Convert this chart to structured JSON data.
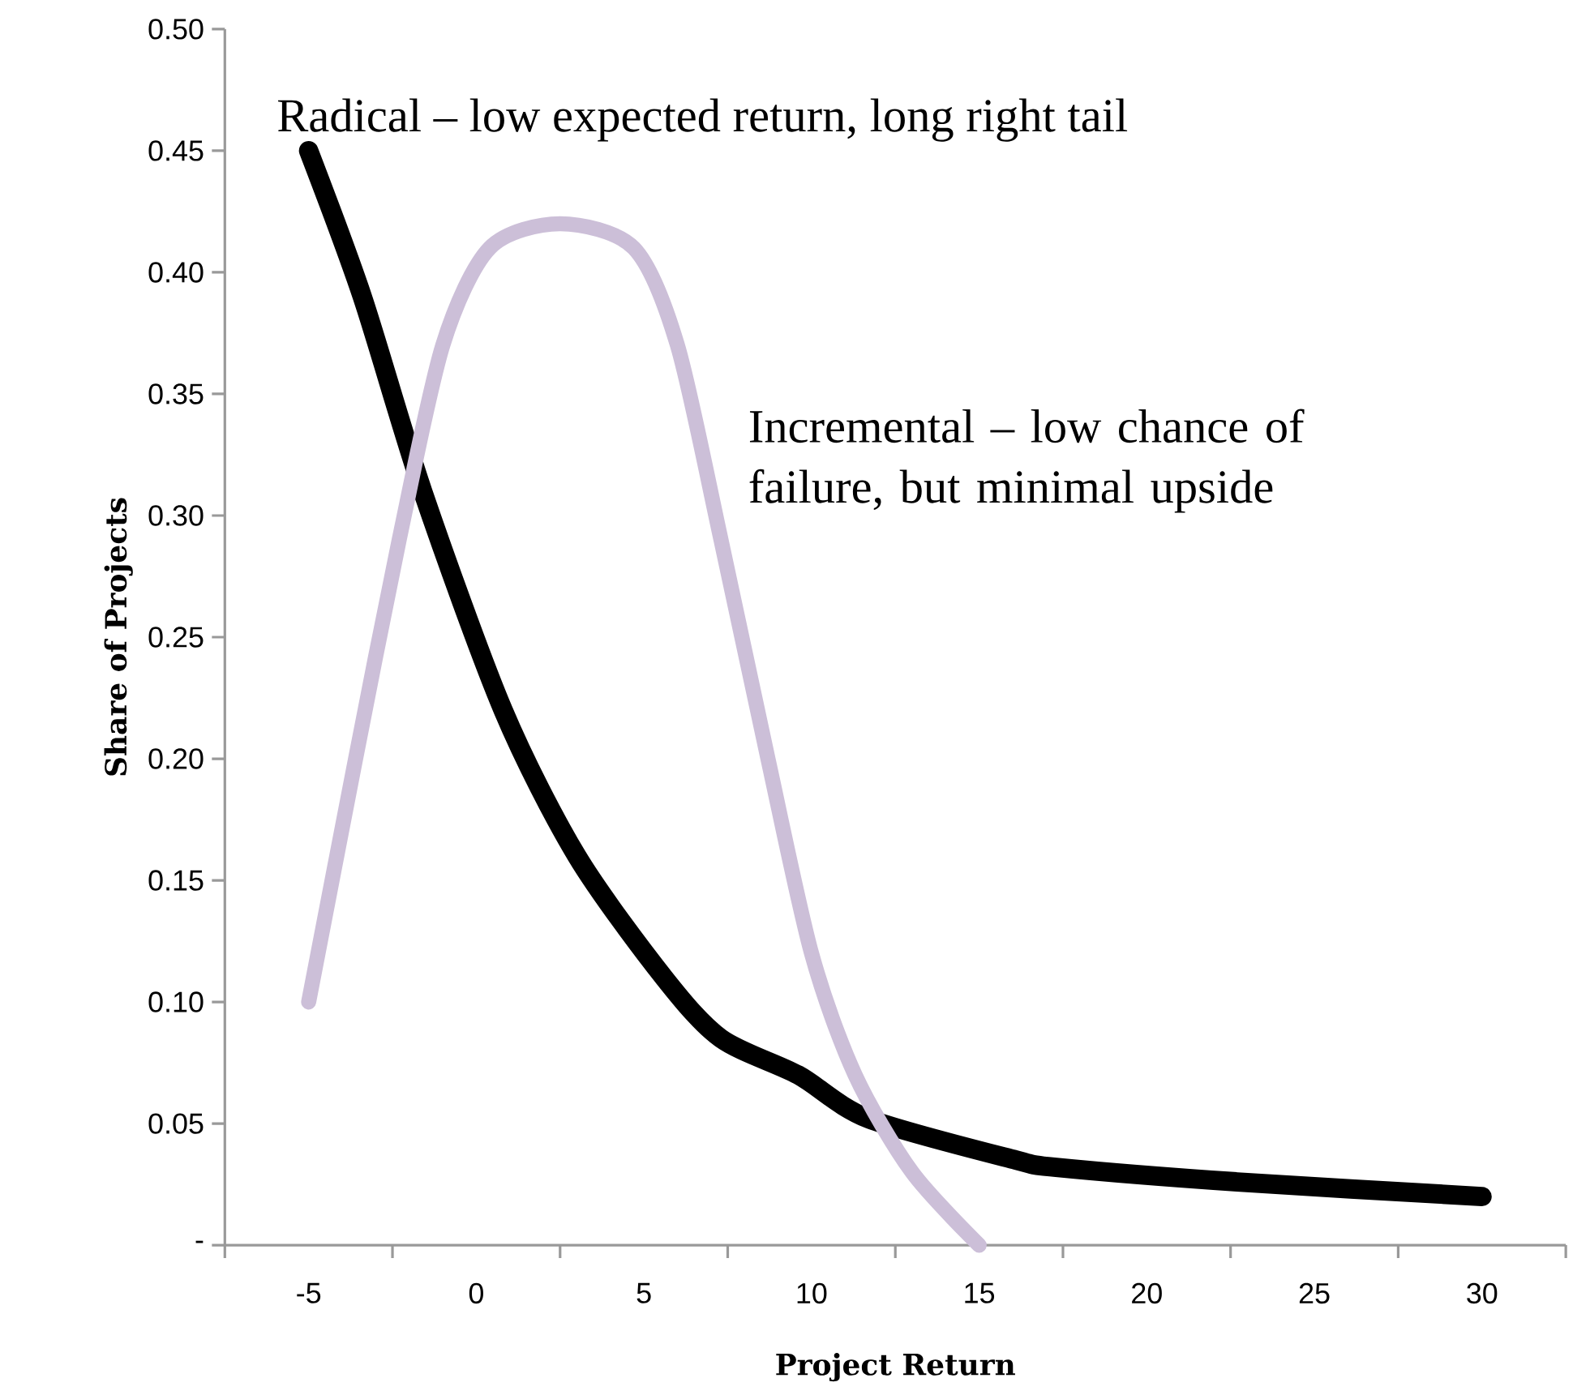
{
  "chart_data": {
    "type": "line",
    "xlabel": "Project Return",
    "ylabel": "Share of Projects",
    "xlim": [
      -7.5,
      32.5
    ],
    "ylim": [
      0,
      0.5
    ],
    "xticks": [
      -5,
      0,
      5,
      10,
      15,
      20,
      25,
      30,
      {
        "value": -7.5,
        "label": null
      },
      {
        "value": -2.5,
        "label": null
      },
      {
        "value": 2.5,
        "label": null
      },
      {
        "value": 7.5,
        "label": null
      },
      {
        "value": 12.5,
        "label": null
      },
      {
        "value": 17.5,
        "label": null
      },
      {
        "value": 22.5,
        "label": null
      },
      {
        "value": 27.5,
        "label": null
      },
      {
        "value": 32.5,
        "label": null
      }
    ],
    "yticks": [
      {
        "value": 0,
        "label": "-"
      },
      {
        "value": 0.05,
        "label": "0.05"
      },
      {
        "value": 0.1,
        "label": "0.10"
      },
      {
        "value": 0.15,
        "label": "0.15"
      },
      {
        "value": 0.2,
        "label": "0.20"
      },
      {
        "value": 0.25,
        "label": "0.25"
      },
      {
        "value": 0.3,
        "label": "0.30"
      },
      {
        "value": 0.35,
        "label": "0.35"
      },
      {
        "value": 0.4,
        "label": "0.40"
      },
      {
        "value": 0.45,
        "label": "0.45"
      },
      {
        "value": 0.5,
        "label": "0.50"
      }
    ],
    "series": [
      {
        "name": "Radical – low expected return, long right tail",
        "color": "#000000",
        "x": [
          -5,
          -3.4,
          -1.6,
          0.8,
          3,
          5.6,
          7.3,
          9.6,
          11.7,
          16.1,
          17.3,
          22.7,
          30
        ],
        "values": [
          0.45,
          0.39,
          0.31,
          0.22,
          0.16,
          0.11,
          0.085,
          0.07,
          0.052,
          0.035,
          0.032,
          0.026,
          0.02
        ]
      },
      {
        "name": "Incremental – low chance of failure, but minimal upside",
        "color": "#ccbfd8",
        "x": [
          -5,
          -3.6,
          -2.3,
          -1,
          0.4,
          2.5,
          4.7,
          6,
          7.3,
          8.7,
          10,
          11.3,
          13,
          15
        ],
        "values": [
          0.1,
          0.2,
          0.29,
          0.37,
          0.41,
          0.42,
          0.41,
          0.37,
          0.29,
          0.2,
          0.12,
          0.07,
          0.03,
          0
        ]
      }
    ]
  }
}
